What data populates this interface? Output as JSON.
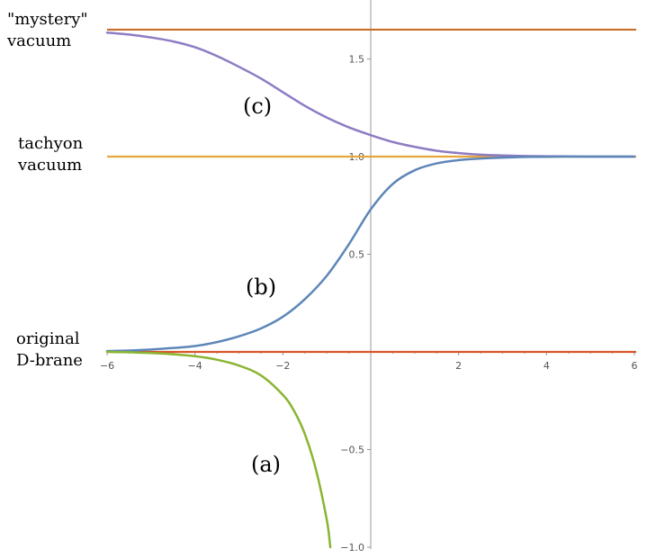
{
  "chart_data": {
    "type": "line",
    "title": "",
    "xlabel": "",
    "ylabel": "",
    "xlim": [
      -6,
      6
    ],
    "ylim": [
      -1.0,
      1.75
    ],
    "x_ticks": [
      -6,
      -4,
      -2,
      2,
      4,
      6
    ],
    "y_ticks": [
      -1.0,
      -0.5,
      0.5,
      1.0,
      1.5
    ],
    "x_tick_labels": [
      "−6",
      "−4",
      "−2",
      "2",
      "4",
      "6"
    ],
    "y_tick_labels": [
      "−1.0",
      "−0.5",
      "0.5",
      "1.0",
      "1.5"
    ],
    "grid": false,
    "horizontal_lines": [
      {
        "name": "mystery-vacuum-line",
        "y": 1.65,
        "color": "#C8702A"
      },
      {
        "name": "tachyon-vacuum-line",
        "y": 1.0,
        "color": "#E6A63C"
      },
      {
        "name": "original-d-brane-line",
        "y": 0.0,
        "color": "#D9542B"
      }
    ],
    "series": [
      {
        "name": "(c)",
        "color": "#8E7CC3",
        "x": [
          -6,
          -5.5,
          -5,
          -4.5,
          -4,
          -3.5,
          -3,
          -2.5,
          -2,
          -1.5,
          -1,
          -0.5,
          0,
          0.5,
          1,
          1.5,
          2,
          2.5,
          3,
          3.5,
          4,
          4.5,
          5,
          5.5,
          6
        ],
        "y": [
          1.635,
          1.625,
          1.61,
          1.59,
          1.56,
          1.515,
          1.46,
          1.4,
          1.33,
          1.26,
          1.2,
          1.15,
          1.11,
          1.075,
          1.05,
          1.03,
          1.018,
          1.01,
          1.006,
          1.003,
          1.002,
          1.001,
          1.0,
          1.0,
          1.0
        ]
      },
      {
        "name": "(b)",
        "color": "#5D86B8",
        "x": [
          -6,
          -5.5,
          -5,
          -4.5,
          -4,
          -3.5,
          -3,
          -2.5,
          -2,
          -1.5,
          -1,
          -0.5,
          0,
          0.5,
          1,
          1.5,
          2,
          2.5,
          3,
          3.5,
          4,
          4.5,
          5,
          5.5,
          6
        ],
        "y": [
          0.004,
          0.007,
          0.012,
          0.02,
          0.03,
          0.05,
          0.08,
          0.12,
          0.18,
          0.27,
          0.39,
          0.55,
          0.73,
          0.86,
          0.93,
          0.965,
          0.982,
          0.99,
          0.995,
          0.998,
          0.999,
          1.0,
          1.0,
          1.0,
          1.0
        ]
      },
      {
        "name": "(a)",
        "color": "#8AB531",
        "x": [
          -6,
          -5.5,
          -5,
          -4.5,
          -4,
          -3.5,
          -3,
          -2.5,
          -2,
          -1.75,
          -1.5,
          -1.25,
          -1.0,
          -0.92
        ],
        "y": [
          0.0,
          -0.002,
          -0.006,
          -0.012,
          -0.022,
          -0.04,
          -0.07,
          -0.12,
          -0.22,
          -0.3,
          -0.42,
          -0.6,
          -0.86,
          -1.0
        ]
      }
    ],
    "side_labels": {
      "mystery_line1": "\"mystery\"",
      "mystery_line2": "vacuum",
      "tachyon_line1": "tachyon",
      "tachyon_line2": "vacuum",
      "original_line1": "original",
      "original_line2": "D-brane"
    },
    "curve_labels": {
      "a": "(a)",
      "b": "(b)",
      "c": "(c)"
    },
    "axis_color": "#999999"
  }
}
